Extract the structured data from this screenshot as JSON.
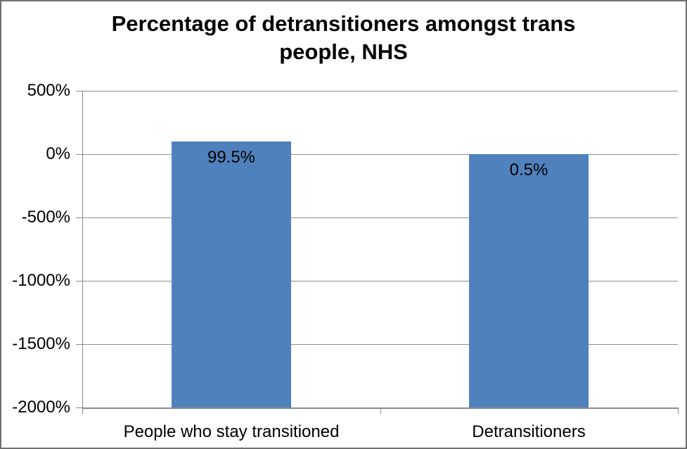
{
  "window": {
    "background": "#FFFFFF",
    "border_color": "#707070"
  },
  "chart_data": {
    "type": "bar",
    "title": "Percentage of detransitioners amongst trans people, NHS",
    "title_lines": [
      "Percentage of detransitioners amongst trans",
      "people, NHS"
    ],
    "xlabel": "",
    "ylabel": "",
    "categories": [
      "People who stay transitioned",
      "Detransitioners"
    ],
    "values": [
      99.5,
      0.5
    ],
    "data_labels": [
      "99.5%",
      "0.5%"
    ],
    "data_label_position": "inside-top",
    "bar_color": "#4F81BD",
    "ylim": [
      -2000,
      500
    ],
    "bar_baseline": -2000,
    "yticks": [
      {
        "value": 500,
        "label": "500%"
      },
      {
        "value": 0,
        "label": "0%"
      },
      {
        "value": -500,
        "label": "-500%"
      },
      {
        "value": -1000,
        "label": "-1000%"
      },
      {
        "value": -1500,
        "label": "-1500%"
      },
      {
        "value": -2000,
        "label": "-2000%"
      }
    ],
    "grid": true,
    "gridline_color": "#8E8E8E",
    "axis_color": "#8A8A8A",
    "text_color": "#000000",
    "legend": "none"
  }
}
